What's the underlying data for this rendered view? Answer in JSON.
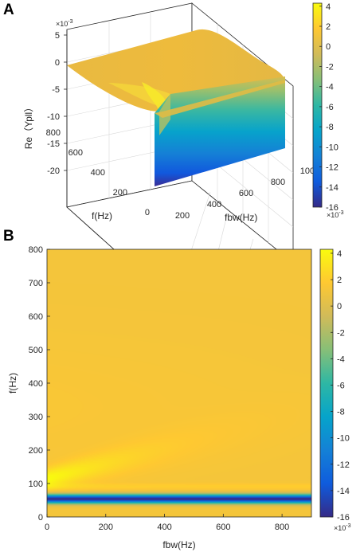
{
  "panels": {
    "a": {
      "letter": "A",
      "zlabel": "Re（Ypll）",
      "xlabel": "fbw(Hz)",
      "ylabel": "f(Hz)",
      "exponent": "×10",
      "exponent_power": "-3"
    },
    "b": {
      "letter": "B",
      "xlabel": "fbw(Hz)",
      "ylabel": "f(Hz)",
      "exponent": "×10",
      "exponent_power": "-3"
    }
  },
  "colors": {
    "parula": [
      "#352A87",
      "#0F5CDD",
      "#1481D6",
      "#06A4CA",
      "#2EB7A4",
      "#87BF77",
      "#D1BB59",
      "#FEC832",
      "#F9FB0E"
    ],
    "plateau": "#F0B93A",
    "axis": "#262626",
    "grid": "#d0d0d0"
  },
  "chart_data": [
    {
      "type": "surface",
      "panel": "A",
      "xlabel": "fbw(Hz)",
      "ylabel": "f(Hz)",
      "zlabel": "Re（Ypll）",
      "x_ticks": [
        "200",
        "400",
        "600",
        "800",
        "1000"
      ],
      "y_ticks": [
        "0",
        "200",
        "400",
        "600",
        "800"
      ],
      "z_ticks": [
        "5",
        "0",
        "-5",
        "-10",
        "-15",
        "-20"
      ],
      "z_multiplier": "×10^-3",
      "xlim": [
        0,
        1000
      ],
      "ylim": [
        0,
        800
      ],
      "zlim": [
        -20,
        5
      ],
      "colorbar": {
        "ticks": [
          "4",
          "2",
          "0",
          "-2",
          "-4",
          "-6",
          "-8",
          "-10",
          "-12",
          "-14",
          "-16"
        ],
        "range": [
          -16,
          4.3
        ],
        "multiplier": "×10^-3"
      },
      "grid": true
    },
    {
      "type": "heatmap",
      "panel": "B",
      "xlabel": "fbw(Hz)",
      "ylabel": "f(Hz)",
      "x_ticks": [
        "0",
        "200",
        "400",
        "600",
        "800"
      ],
      "y_ticks": [
        "0",
        "100",
        "200",
        "300",
        "400",
        "500",
        "600",
        "700",
        "800"
      ],
      "xlim": [
        0,
        900
      ],
      "ylim": [
        0,
        800
      ],
      "features": {
        "resonance_f": 55,
        "minimum_value": -16,
        "plateau_value": 1.2,
        "ridge_max": 4.3
      },
      "colorbar": {
        "ticks": [
          "4",
          "2",
          "0",
          "-2",
          "-4",
          "-6",
          "-8",
          "-10",
          "-12",
          "-14",
          "-16"
        ],
        "range": [
          -16,
          4.3
        ],
        "multiplier": "×10^-3"
      }
    }
  ]
}
